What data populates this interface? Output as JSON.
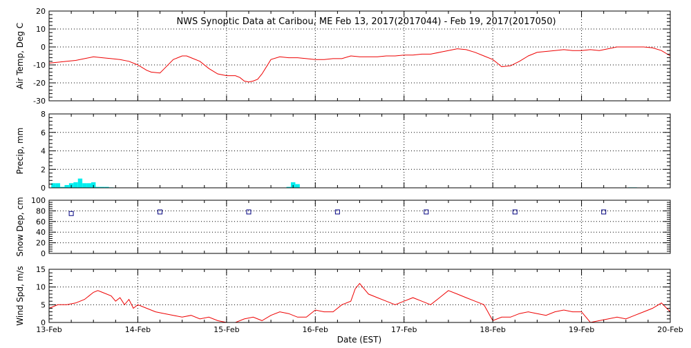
{
  "chart_data": {
    "type": "multi-panel-timeseries",
    "title": "NWS Synoptic Data at Caribou, ME   Feb 13, 2017(2017044) - Feb 19, 2017(2017050)",
    "xlabel": "Date (EST)",
    "x_ticks": [
      "13-Feb",
      "14-Feb",
      "15-Feb",
      "16-Feb",
      "17-Feb",
      "18-Feb",
      "19-Feb",
      "20-Feb"
    ],
    "x_range_days": [
      0,
      7
    ],
    "grid": true,
    "colors": {
      "line": "#ee0000",
      "bar": "#00eeee",
      "marker": "#000080",
      "grid": "#000000"
    },
    "panels": [
      {
        "type": "line",
        "ylabel": "Air Temp, Deg C",
        "ylim": [
          -30,
          20
        ],
        "yticks": [
          20,
          10,
          0,
          -10,
          -20,
          -30
        ],
        "series": [
          {
            "x": [
              0,
              0.1,
              0.2,
              0.3,
              0.4,
              0.5,
              0.6,
              0.7,
              0.8,
              0.9,
              1.0,
              1.1,
              1.15,
              1.25,
              1.3,
              1.4,
              1.5,
              1.55,
              1.6,
              1.7,
              1.8,
              1.9,
              2.0,
              2.1,
              2.15,
              2.2,
              2.25,
              2.3,
              2.35,
              2.4,
              2.5,
              2.6,
              2.7,
              2.8,
              2.9,
              3.0,
              3.1,
              3.2,
              3.3,
              3.4,
              3.5,
              3.6,
              3.7,
              3.8,
              3.9,
              4.0,
              4.1,
              4.2,
              4.3,
              4.4,
              4.5,
              4.6,
              4.7,
              4.8,
              4.9,
              5.0,
              5.05,
              5.1,
              5.2,
              5.3,
              5.4,
              5.5,
              5.6,
              5.7,
              5.8,
              5.9,
              6.0,
              6.1,
              6.2,
              6.3,
              6.4,
              6.5,
              6.6,
              6.7,
              6.8,
              6.9,
              7.0
            ],
            "values": [
              -9,
              -8.5,
              -8,
              -7.5,
              -6.5,
              -5.5,
              -6,
              -6.5,
              -7,
              -8,
              -10,
              -13,
              -14,
              -14.5,
              -12,
              -7,
              -5,
              -5,
              -6,
              -8,
              -12,
              -15,
              -16,
              -16,
              -17,
              -19,
              -19.5,
              -19,
              -18,
              -15,
              -7,
              -5.5,
              -6,
              -6,
              -6.5,
              -7,
              -7,
              -6.5,
              -6.5,
              -5,
              -5.5,
              -5.5,
              -5.5,
              -5,
              -5,
              -4.5,
              -4.5,
              -4,
              -4,
              -3,
              -2,
              -1,
              -1.5,
              -3,
              -5,
              -7,
              -9,
              -11,
              -10.5,
              -8,
              -5,
              -3,
              -2.5,
              -2,
              -1.5,
              -2,
              -2,
              -1.5,
              -2,
              -1,
              0,
              0,
              0,
              0,
              -0.5,
              -2,
              -5
            ]
          }
        ]
      },
      {
        "type": "bar",
        "ylabel": "Precip, mm",
        "ylim": [
          0,
          8
        ],
        "yticks": [
          8,
          6,
          4,
          2,
          0
        ],
        "series": [
          {
            "x": [
              0.05,
              0.1,
              0.15,
              0.2,
              0.25,
              0.3,
              0.35,
              0.4,
              0.45,
              0.5,
              0.55,
              0.6,
              0.65,
              0.7,
              2.7,
              2.75,
              2.8,
              6.55,
              6.6
            ],
            "values": [
              0.5,
              0.5,
              0.1,
              0.3,
              0.5,
              0.6,
              1.0,
              0.5,
              0.5,
              0.6,
              0.1,
              0.1,
              0.1,
              0.05,
              0.1,
              0.6,
              0.4,
              0.05,
              0.05
            ]
          }
        ]
      },
      {
        "type": "scatter",
        "ylabel": "Snow Dep, cm",
        "ylim": [
          0,
          100
        ],
        "yticks": [
          100,
          80,
          60,
          40,
          20,
          0
        ],
        "series": [
          {
            "x": [
              0.25,
              1.25,
              2.25,
              3.25,
              4.25,
              5.25,
              6.25
            ],
            "values": [
              75,
              78,
              78,
              78,
              78,
              78,
              78
            ]
          }
        ]
      },
      {
        "type": "line",
        "ylabel": "Wind Spd, m/s",
        "ylim": [
          0,
          15
        ],
        "yticks": [
          15,
          10,
          5,
          0
        ],
        "series": [
          {
            "x": [
              0,
              0.1,
              0.2,
              0.3,
              0.4,
              0.5,
              0.55,
              0.6,
              0.7,
              0.75,
              0.8,
              0.85,
              0.9,
              0.95,
              1.0,
              1.05,
              1.1,
              1.2,
              1.3,
              1.4,
              1.5,
              1.6,
              1.7,
              1.8,
              1.9,
              2.0,
              2.1,
              2.2,
              2.3,
              2.4,
              2.5,
              2.6,
              2.7,
              2.8,
              2.9,
              3.0,
              3.1,
              3.2,
              3.3,
              3.4,
              3.45,
              3.5,
              3.6,
              3.7,
              3.8,
              3.9,
              4.0,
              4.1,
              4.2,
              4.3,
              4.4,
              4.5,
              4.6,
              4.7,
              4.8,
              4.9,
              5.0,
              5.1,
              5.2,
              5.3,
              5.4,
              5.5,
              5.6,
              5.7,
              5.8,
              5.9,
              6.0,
              6.1,
              6.2,
              6.3,
              6.4,
              6.5,
              6.6,
              6.7,
              6.8,
              6.9,
              7.0
            ],
            "values": [
              4,
              5,
              5,
              5.5,
              6.5,
              8.5,
              9,
              8.5,
              7.5,
              6,
              7,
              5,
              6.5,
              4,
              5,
              4.5,
              4,
              3,
              2.5,
              2,
              1.5,
              2,
              1,
              1.5,
              0.5,
              0,
              0,
              1,
              1.5,
              0.5,
              2,
              3,
              2.5,
              1.5,
              1.5,
              3.5,
              3,
              3,
              5,
              6,
              9.5,
              11,
              8,
              7,
              6,
              5,
              6,
              7,
              6,
              5,
              7,
              9,
              8,
              7,
              6,
              5,
              0.5,
              1.5,
              1.5,
              2.5,
              3,
              2.5,
              2,
              3,
              3.5,
              3,
              3,
              0,
              0.5,
              1,
              1.5,
              1,
              2,
              3,
              4,
              5.5,
              3
            ]
          }
        ]
      }
    ]
  }
}
